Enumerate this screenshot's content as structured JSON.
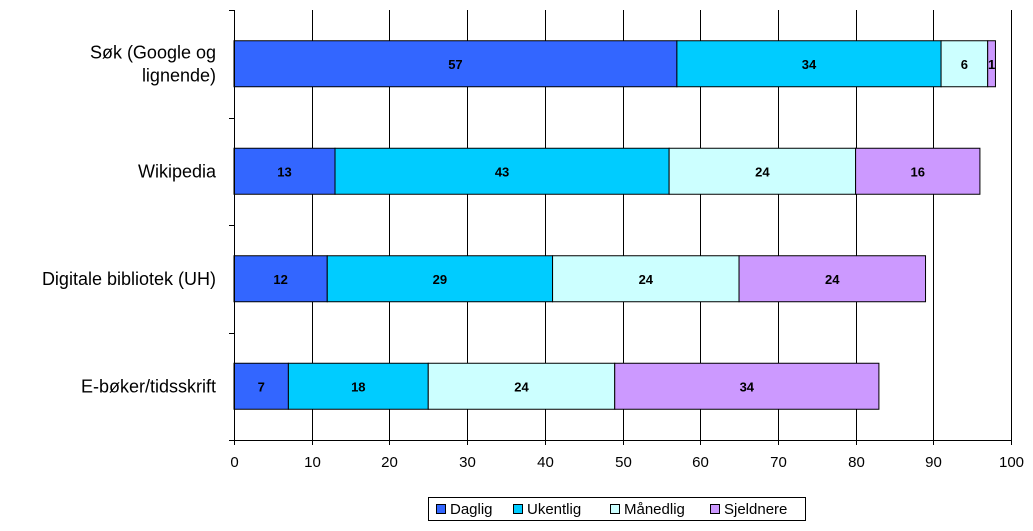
{
  "chart_data": {
    "type": "bar",
    "orientation": "horizontal",
    "stacked": true,
    "categories": [
      "Søk (Google og lignende)",
      "Wikipedia",
      "Digitale bibliotek (UH)",
      "E-bøker/tidsskrift"
    ],
    "category_label_lines": [
      [
        "Søk (Google og",
        "lignende)"
      ],
      [
        "Wikipedia"
      ],
      [
        "Digitale bibliotek (UH)"
      ],
      [
        "E-bøker/tidsskrift"
      ]
    ],
    "series": [
      {
        "name": "Daglig",
        "color": "#3366FF",
        "values": [
          57,
          13,
          12,
          7
        ]
      },
      {
        "name": "Ukentlig",
        "color": "#00CCFF",
        "values": [
          34,
          43,
          29,
          18
        ]
      },
      {
        "name": "Månedlig",
        "color": "#CCFFFF",
        "values": [
          6,
          24,
          24,
          24
        ]
      },
      {
        "name": "Sjeldnere",
        "color": "#CC99FF",
        "values": [
          1,
          16,
          24,
          34
        ]
      }
    ],
    "xlim": [
      0,
      100
    ],
    "x_ticks": [
      0,
      10,
      20,
      30,
      40,
      50,
      60,
      70,
      80,
      90,
      100
    ],
    "title": "",
    "xlabel": "",
    "ylabel": "",
    "grid": "vertical",
    "legend_position": "bottom",
    "data_labels": true
  }
}
